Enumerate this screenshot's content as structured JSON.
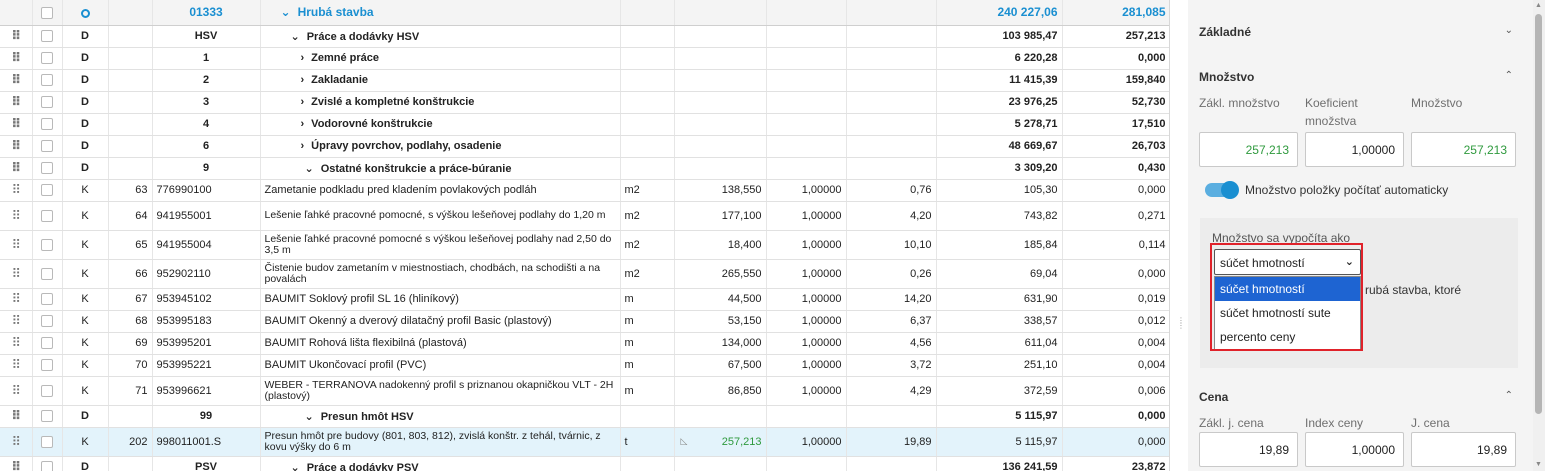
{
  "header_row": {
    "col_o": "O",
    "code": "01333",
    "title": "Hrubá stavba",
    "total": "240 227,06",
    "weight": "281,085"
  },
  "rows": [
    {
      "kind": "D",
      "type": "D",
      "idx": "",
      "code": "HSV",
      "name": "Práce a dodávky HSV",
      "chev": "down",
      "lvl": 1,
      "unit": "",
      "qty": "",
      "coef": "",
      "price": "",
      "total": "103 985,47",
      "weight": "257,213"
    },
    {
      "kind": "D",
      "type": "D",
      "idx": "",
      "code": "1",
      "name": "Zemné práce",
      "chev": "right",
      "lvl": 2,
      "unit": "",
      "qty": "",
      "coef": "",
      "price": "",
      "total": "6 220,28",
      "weight": "0,000"
    },
    {
      "kind": "D",
      "type": "D",
      "idx": "",
      "code": "2",
      "name": "Zakladanie",
      "chev": "right",
      "lvl": 2,
      "unit": "",
      "qty": "",
      "coef": "",
      "price": "",
      "total": "11 415,39",
      "weight": "159,840"
    },
    {
      "kind": "D",
      "type": "D",
      "idx": "",
      "code": "3",
      "name": "Zvislé a kompletné konštrukcie",
      "chev": "right",
      "lvl": 2,
      "unit": "",
      "qty": "",
      "coef": "",
      "price": "",
      "total": "23 976,25",
      "weight": "52,730"
    },
    {
      "kind": "D",
      "type": "D",
      "idx": "",
      "code": "4",
      "name": "Vodorovné konštrukcie",
      "chev": "right",
      "lvl": 2,
      "unit": "",
      "qty": "",
      "coef": "",
      "price": "",
      "total": "5 278,71",
      "weight": "17,510"
    },
    {
      "kind": "D",
      "type": "D",
      "idx": "",
      "code": "6",
      "name": "Úpravy povrchov, podlahy, osadenie",
      "chev": "right",
      "lvl": 2,
      "unit": "",
      "qty": "",
      "coef": "",
      "price": "",
      "total": "48 669,67",
      "weight": "26,703"
    },
    {
      "kind": "D",
      "type": "D",
      "idx": "",
      "code": "9",
      "name": "Ostatné konštrukcie a práce-búranie",
      "chev": "down",
      "lvl": 3,
      "unit": "",
      "qty": "",
      "coef": "",
      "price": "",
      "total": "3 309,20",
      "weight": "0,430"
    },
    {
      "kind": "K",
      "type": "K",
      "idx": "63",
      "code": "776990100",
      "name": "Zametanie podkladu pred kladením povlakových podláh",
      "unit": "m2",
      "qty": "138,550",
      "coef": "1,00000",
      "price": "0,76",
      "total": "105,30",
      "weight": "0,000"
    },
    {
      "kind": "K",
      "type": "K",
      "idx": "64",
      "code": "941955001",
      "name": "Lešenie ľahké pracovné pomocné, s výškou lešeňovej podlahy do 1,20 m",
      "unit": "m2",
      "qty": "177,100",
      "coef": "1,00000",
      "price": "4,20",
      "total": "743,82",
      "weight": "0,271",
      "tall": true
    },
    {
      "kind": "K",
      "type": "K",
      "idx": "65",
      "code": "941955004",
      "name": "Lešenie ľahké pracovné pomocné s výškou lešeňovej podlahy nad 2,50 do 3,5 m",
      "unit": "m2",
      "qty": "18,400",
      "coef": "1,00000",
      "price": "10,10",
      "total": "185,84",
      "weight": "0,114",
      "tall": true
    },
    {
      "kind": "K",
      "type": "K",
      "idx": "66",
      "code": "952902110",
      "name": "Čistenie budov zametaním v miestnostiach, chodbách, na schodišti a na povalách",
      "unit": "m2",
      "qty": "265,550",
      "coef": "1,00000",
      "price": "0,26",
      "total": "69,04",
      "weight": "0,000",
      "tall": true
    },
    {
      "kind": "K",
      "type": "K",
      "idx": "67",
      "code": "953945102",
      "name": "BAUMIT Soklový profil SL 16 (hliníkový)",
      "unit": "m",
      "qty": "44,500",
      "coef": "1,00000",
      "price": "14,20",
      "total": "631,90",
      "weight": "0,019"
    },
    {
      "kind": "K",
      "type": "K",
      "idx": "68",
      "code": "953995183",
      "name": "BAUMIT Okenný a dverový dilatačný profil Basic (plastový)",
      "unit": "m",
      "qty": "53,150",
      "coef": "1,00000",
      "price": "6,37",
      "total": "338,57",
      "weight": "0,012"
    },
    {
      "kind": "K",
      "type": "K",
      "idx": "69",
      "code": "953995201",
      "name": "BAUMIT Rohová lišta flexibilná (plastová)",
      "unit": "m",
      "qty": "134,000",
      "coef": "1,00000",
      "price": "4,56",
      "total": "611,04",
      "weight": "0,004"
    },
    {
      "kind": "K",
      "type": "K",
      "idx": "70",
      "code": "953995221",
      "name": "BAUMIT Ukončovací profil (PVC)",
      "unit": "m",
      "qty": "67,500",
      "coef": "1,00000",
      "price": "3,72",
      "total": "251,10",
      "weight": "0,004"
    },
    {
      "kind": "K",
      "type": "K",
      "idx": "71",
      "code": "953996621",
      "name": "WEBER - TERRANOVA nadokenný profil s priznanou okapničkou VLT - 2H (plastový)",
      "unit": "m",
      "qty": "86,850",
      "coef": "1,00000",
      "price": "4,29",
      "total": "372,59",
      "weight": "0,006",
      "tall": true
    },
    {
      "kind": "D",
      "type": "D",
      "idx": "",
      "code": "99",
      "name": "Presun hmôt HSV",
      "chev": "down",
      "lvl": 3,
      "unit": "",
      "qty": "",
      "coef": "",
      "price": "",
      "total": "5 115,97",
      "weight": "0,000"
    },
    {
      "kind": "K",
      "type": "K",
      "idx": "202",
      "code": "998011001.S",
      "name": "Presun hmôt pre budovy (801, 803, 812), zvislá konštr. z tehál, tvárnic, z kovu výšky do 6 m",
      "unit": "t",
      "qty": "257,213",
      "coef": "1,00000",
      "price": "19,89",
      "total": "5 115,97",
      "weight": "0,000",
      "tall": true,
      "selected": true,
      "qty_green": true
    },
    {
      "kind": "D",
      "type": "D",
      "idx": "",
      "code": "PSV",
      "name": "Práce a dodávky PSV",
      "chev": "down",
      "lvl": 1,
      "unit": "",
      "qty": "",
      "coef": "",
      "price": "",
      "total": "136 241,59",
      "weight": "23,872"
    }
  ],
  "panel": {
    "basic": "Základné",
    "quantity_section": "Množstvo",
    "base_qty_label": "Zákl. množstvo",
    "coef_label": "Koeficient množstva",
    "qty_label": "Množstvo",
    "base_qty": "257,213",
    "coef": "1,00000",
    "qty": "257,213",
    "auto_toggle": "Množstvo položky počítať automaticky",
    "calc_label": "Množstvo sa vypočíta ako",
    "calc_selected": "súčet hmotností",
    "calc_options": [
      "súčet hmotností",
      "súčet hmotností sute",
      "percento ceny"
    ],
    "partial_text": "rubá stavba, ktoré",
    "price_section": "Cena",
    "base_price_label": "Zákl. j. cena",
    "price_index_label": "Index ceny",
    "unit_price_label": "J. cena",
    "base_price": "19,89",
    "price_index": "1,00000",
    "unit_price": "19,89"
  },
  "colors": {
    "accent": "#1a8fd1",
    "green": "#2f9a3e",
    "highlight": "#e0222a",
    "selected_row": "#e3f3fb",
    "option_active": "#1e64d2"
  }
}
